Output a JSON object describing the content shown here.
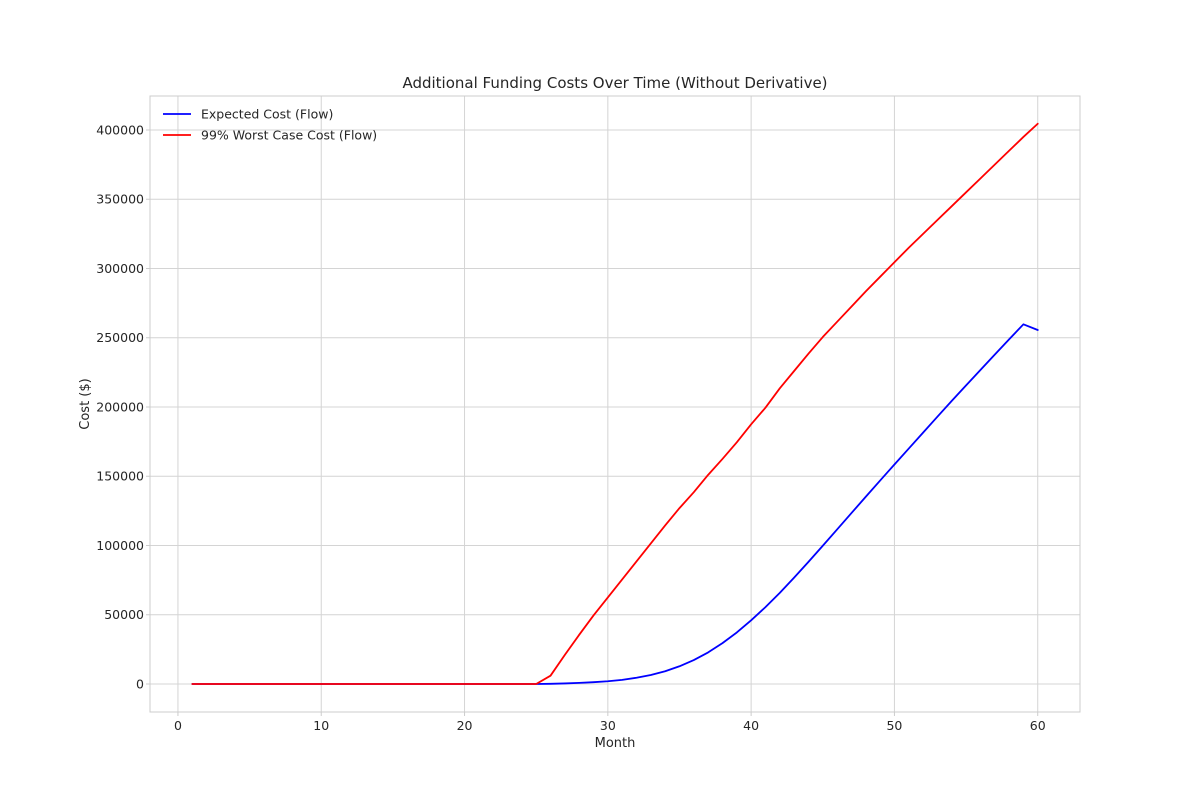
{
  "chart_data": {
    "type": "line",
    "title": "Additional Funding Costs Over Time (Without Derivative)",
    "xlabel": "Month",
    "ylabel": "Cost ($)",
    "xlim": [
      -1.95,
      62.95
    ],
    "ylim": [
      -20216,
      424544
    ],
    "xticks": [
      0,
      10,
      20,
      30,
      40,
      50,
      60
    ],
    "yticks": [
      0,
      50000,
      100000,
      150000,
      200000,
      250000,
      300000,
      350000,
      400000
    ],
    "grid": true,
    "legend_position": "top-left",
    "series": [
      {
        "name": "Expected Cost (Flow)",
        "color": "#0000ff",
        "x": [
          1,
          25,
          26,
          27,
          28,
          29,
          30,
          31,
          32,
          33,
          34,
          35,
          36,
          37,
          38,
          39,
          40,
          41,
          42,
          43,
          44,
          45,
          46,
          47,
          48,
          49,
          50,
          51,
          52,
          53,
          54,
          55,
          56,
          57,
          58,
          59,
          60
        ],
        "y": [
          0,
          0,
          150,
          400,
          800,
          1300,
          2000,
          3000,
          4500,
          6500,
          9200,
          12800,
          17300,
          22800,
          29500,
          37200,
          46000,
          55500,
          65800,
          76800,
          88200,
          99800,
          111600,
          123400,
          135200,
          146900,
          158500,
          170000,
          181500,
          193000,
          204400,
          215600,
          226700,
          237800,
          248800,
          259700,
          255600
        ]
      },
      {
        "name": "99% Worst Case Cost (Flow)",
        "color": "#ff0000",
        "x": [
          1,
          25,
          26,
          27,
          28,
          29,
          30,
          31,
          32,
          33,
          34,
          35,
          36,
          37,
          38,
          39,
          40,
          41,
          42,
          43,
          44,
          45,
          46,
          47,
          48,
          49,
          50,
          51,
          52,
          53,
          54,
          55,
          56,
          57,
          58,
          59,
          60
        ],
        "y": [
          0,
          0,
          6000,
          21000,
          35500,
          49500,
          62500,
          75500,
          88500,
          101500,
          114500,
          127000,
          138500,
          151000,
          162500,
          174500,
          187500,
          199500,
          213500,
          226000,
          238500,
          250500,
          261500,
          272500,
          283500,
          294000,
          304500,
          315000,
          325000,
          335000,
          345000,
          355000,
          365000,
          375000,
          385000,
          395000,
          404500
        ]
      }
    ]
  }
}
